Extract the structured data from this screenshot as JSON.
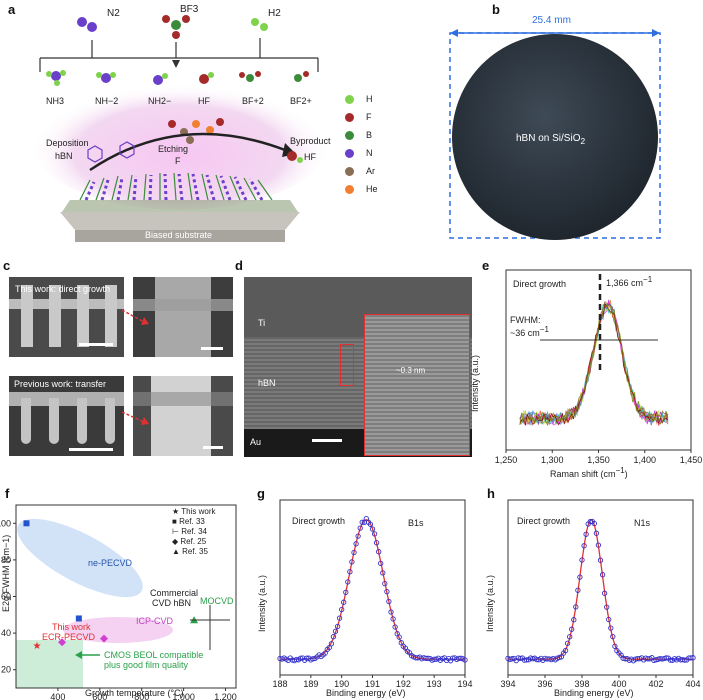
{
  "panels": {
    "a": {
      "letter": "a",
      "gases_top": [
        "N2",
        "BF3",
        "H2"
      ],
      "species": [
        "NH3",
        "NH−2",
        "NH2−",
        "HF",
        "BF+2",
        "BF2+"
      ],
      "deposition_label": "Deposition",
      "hbn_label": "hBN",
      "etching_label": "Etching",
      "etching_species": "F",
      "byproduct_label": "Byproduct",
      "byproduct_species": "HF",
      "substrate_label": "Biased substrate",
      "legend": [
        {
          "label": "H",
          "color": "#7ed34b"
        },
        {
          "label": "F",
          "color": "#a52a2a"
        },
        {
          "label": "B",
          "color": "#3a8c3a"
        },
        {
          "label": "N",
          "color": "#6a3fc9"
        },
        {
          "label": "Ar",
          "color": "#8a6d55"
        },
        {
          "label": "He",
          "color": "#f08030"
        }
      ]
    },
    "b": {
      "letter": "b",
      "dimension": "25.4 mm",
      "wafer_label": "hBN on Si/SiO",
      "wafer_sub": "2"
    },
    "c": {
      "letter": "c",
      "top_caption": "This work: direct growth",
      "bottom_caption": "Previous work: transfer"
    },
    "d": {
      "letter": "d",
      "ti_label": "Ti",
      "hbn_label": "hBN",
      "au_label": "Au",
      "spacing_label": "~0.3 nm"
    },
    "e": {
      "letter": "e",
      "title": "Direct growth",
      "peak_label": "1,366 cm",
      "peak_sup": "−1",
      "fwhm_label": "FWHM:",
      "fwhm_value": "~36 cm",
      "fwhm_sup": "−1",
      "ylabel": "Intensity (a.u.)",
      "xlabel": "Raman shift (cm",
      "xlabel_sup": "−1",
      "xlabel_end": ")",
      "xticks": [
        "1,250",
        "1,300",
        "1,350",
        "1,400",
        "1,450"
      ]
    },
    "f": {
      "letter": "f",
      "ylabel": "E2g FWHM (cm−1)",
      "xlabel": "Growth temperature (°C)",
      "yticks": [
        "20",
        "40",
        "60",
        "80",
        "100"
      ],
      "xticks": [
        "400",
        "600",
        "800",
        "1,000",
        "1,200"
      ],
      "legend": [
        "This work",
        "Ref. 33",
        "Ref. 34",
        "Ref. 25",
        "Ref. 35"
      ],
      "labels": {
        "ne_pecvd": "ne-PECVD",
        "this_work": "This work",
        "ecr_pecvd": "ECR-PECVD",
        "icp_cvd": "ICP-CVD",
        "commercial": "Commercial",
        "cvd_hbn": "CVD hBN",
        "mocvd": "MOCVD",
        "cmos1": "CMOS BEOL compatible",
        "cmos2": "plus good film quality"
      }
    },
    "g": {
      "letter": "g",
      "title": "Direct growth",
      "peak": "B1s",
      "ylabel": "Intensity (a.u.)",
      "xlabel": "Binding energy (eV)",
      "xticks": [
        "188",
        "189",
        "190",
        "191",
        "192",
        "193",
        "194"
      ]
    },
    "h": {
      "letter": "h",
      "title": "Direct growth",
      "peak": "N1s",
      "ylabel": "Intensity (a.u.)",
      "xlabel": "Binding energy (eV)",
      "xticks": [
        "394",
        "396",
        "398",
        "400",
        "402",
        "404"
      ]
    }
  },
  "chart_data": [
    {
      "type": "line",
      "title": "Direct growth",
      "xlabel": "Raman shift (cm−1)",
      "ylabel": "Intensity (a.u.)",
      "xlim": [
        1250,
        1450
      ],
      "peak": 1366,
      "fwhm": 36
    },
    {
      "type": "scatter",
      "xlabel": "Growth temperature (°C)",
      "ylabel": "E2g FWHM (cm−1)",
      "xlim": [
        200,
        1250
      ],
      "ylim": [
        10,
        110
      ],
      "series": [
        {
          "name": "This work",
          "x": [
            300
          ],
          "y": [
            33
          ]
        },
        {
          "name": "Ref. 33",
          "x": [
            250,
            500
          ],
          "y": [
            100,
            48
          ]
        },
        {
          "name": "Ref. 25",
          "x": [
            420,
            620
          ],
          "y": [
            35,
            37
          ]
        },
        {
          "name": "Ref. 35",
          "x": [
            1050
          ],
          "y": [
            47
          ]
        }
      ]
    },
    {
      "type": "line",
      "title": "Direct growth",
      "peak_name": "B1s",
      "xlabel": "Binding energy (eV)",
      "ylabel": "Intensity (a.u.)",
      "xlim": [
        188,
        194
      ],
      "peak": 190.8
    },
    {
      "type": "line",
      "title": "Direct growth",
      "peak_name": "N1s",
      "xlabel": "Binding energy (eV)",
      "ylabel": "Intensity (a.u.)",
      "xlim": [
        394,
        404
      ],
      "peak": 398.5
    }
  ]
}
